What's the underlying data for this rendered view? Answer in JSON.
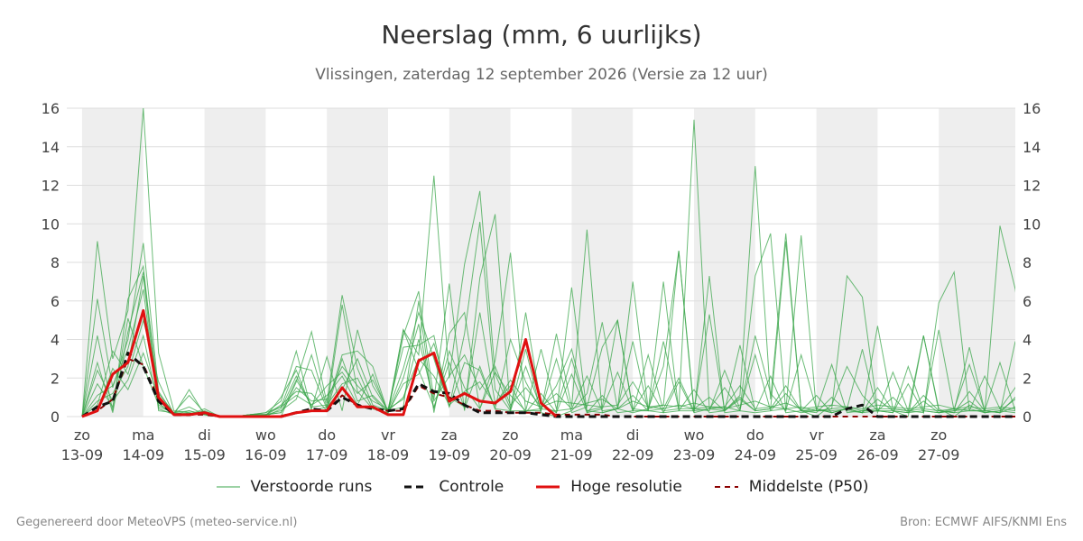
{
  "header": {
    "title": "Neerslag (mm, 6 uurlijks)",
    "subtitle": "Vlissingen, zaterdag 12 september 2026 (Versie za 12 uur)"
  },
  "footer": {
    "left": "Gegenereerd door MeteoVPS (meteo-service.nl)",
    "right": "Bron: ECMWF AIFS/KNMI Ens"
  },
  "legend": {
    "items": [
      {
        "label": "Verstoorde runs",
        "color": "#3aa64a",
        "style": "thin"
      },
      {
        "label": "Controle",
        "color": "#111111",
        "style": "dashed"
      },
      {
        "label": "Hoge resolutie",
        "color": "#e01010",
        "style": "thick"
      },
      {
        "label": "Middelste (P50)",
        "color": "#8b0000",
        "style": "dashed"
      }
    ]
  },
  "colors": {
    "ensemble": "#3aa64a",
    "control": "#111111",
    "high_resolution": "#e01010",
    "median": "#8b0000",
    "weekend_band": "#eeeeee",
    "grid": "#dddddd"
  },
  "chart_data": {
    "type": "line",
    "ylim": [
      0,
      16
    ],
    "yticks": [
      0,
      2,
      4,
      6,
      8,
      10,
      12,
      14,
      16
    ],
    "xlim": [
      -0.25,
      15.25
    ],
    "x_unit": "days from 13-09 (6-hourly steps)",
    "x_tick_labels": [
      {
        "day": "zo",
        "date": "13-09"
      },
      {
        "day": "ma",
        "date": "14-09"
      },
      {
        "day": "di",
        "date": "15-09"
      },
      {
        "day": "wo",
        "date": "16-09"
      },
      {
        "day": "do",
        "date": "17-09"
      },
      {
        "day": "vr",
        "date": "18-09"
      },
      {
        "day": "za",
        "date": "19-09"
      },
      {
        "day": "zo",
        "date": "20-09"
      },
      {
        "day": "ma",
        "date": "21-09"
      },
      {
        "day": "di",
        "date": "22-09"
      },
      {
        "day": "wo",
        "date": "23-09"
      },
      {
        "day": "do",
        "date": "24-09"
      },
      {
        "day": "vr",
        "date": "25-09"
      },
      {
        "day": "za",
        "date": "26-09"
      },
      {
        "day": "zo",
        "date": "27-09"
      }
    ],
    "shaded_bands": [
      [
        0,
        1
      ],
      [
        2,
        3
      ],
      [
        4,
        5
      ],
      [
        6,
        7
      ],
      [
        8,
        9
      ],
      [
        10,
        11
      ],
      [
        12,
        13
      ],
      [
        14,
        15.25
      ]
    ],
    "series": [
      {
        "name": "Hoge resolutie",
        "values": [
          0,
          0.3,
          2.2,
          2.8,
          5.5,
          1,
          0.1,
          0.1,
          0.2,
          0,
          0,
          0,
          0,
          0,
          0.2,
          0.3,
          0.3,
          1.5,
          0.5,
          0.5,
          0.1,
          0.1,
          2.9,
          3.3,
          0.8,
          1.2,
          0.8,
          0.7,
          1.3,
          4.0,
          0.7,
          0
        ]
      },
      {
        "name": "Controle",
        "values": [
          0,
          0.5,
          0.8,
          3.3,
          2.6,
          0.8,
          0.1,
          0.1,
          0.2,
          0,
          0,
          0,
          0,
          0,
          0.2,
          0.4,
          0.3,
          1.0,
          0.6,
          0.4,
          0.3,
          0.4,
          1.7,
          1.3,
          1.2,
          0.6,
          0.2,
          0.2,
          0.2,
          0.2,
          0.1,
          0,
          0,
          0,
          0,
          0,
          0,
          0,
          0,
          0,
          0,
          0,
          0,
          0,
          0,
          0,
          0,
          0,
          0,
          0,
          0.4,
          0.6,
          0,
          0,
          0,
          0,
          0,
          0,
          0,
          0,
          0,
          0,
          0
        ]
      },
      {
        "name": "Middelste (P50)",
        "values": [
          0,
          0.3,
          0.9,
          3.0,
          2.7,
          0.9,
          0.1,
          0.1,
          0.1,
          0,
          0,
          0,
          0,
          0,
          0.2,
          0.3,
          0.3,
          1.1,
          0.6,
          0.4,
          0.3,
          0.3,
          1.6,
          1.2,
          1.0,
          0.6,
          0.3,
          0.3,
          0.2,
          0.2,
          0.2,
          0.1,
          0.1,
          0.1,
          0.1,
          0,
          0,
          0,
          0,
          0,
          0,
          0,
          0,
          0,
          0,
          0,
          0,
          0,
          0,
          0,
          0,
          0,
          0,
          0,
          0,
          0,
          0,
          0,
          0,
          0,
          0,
          0,
          0
        ]
      }
    ],
    "ensemble": [
      [
        0,
        9.1,
        3.0,
        5.5,
        16.0,
        3.3,
        0.3,
        0.2,
        0.1,
        0,
        0,
        0,
        0,
        0,
        1.8,
        4.4,
        0.7,
        6.3,
        2.5,
        0.6,
        0.3,
        4.5,
        3.2,
        12.5,
        2.0,
        7.9,
        11.7,
        2.2,
        0.4,
        3.5,
        0.2,
        0,
        0.3,
        1.2,
        4.9,
        0.4,
        7.0,
        0.4,
        0.6,
        8.6,
        0.4,
        1.0,
        0.3,
        1.1,
        13.0,
        0.9,
        9.5,
        0.3,
        0,
        0.6,
        2.6,
        1.1,
        0.3,
        0.3,
        0,
        4.2,
        0.4,
        0,
        0.6,
        0.2,
        9.9,
        6.6,
        0.5
      ],
      [
        0,
        6.1,
        1.5,
        4.0,
        9.0,
        1.3,
        0.1,
        1.4,
        0.1,
        0,
        0,
        0.1,
        0.2,
        0.8,
        3.4,
        0.3,
        0.5,
        3.2,
        3.4,
        2.6,
        0.2,
        4.2,
        6.5,
        0.9,
        6.9,
        0.3,
        7.2,
        10.5,
        0.3,
        0.3,
        0.3,
        4.3,
        0.5,
        9.7,
        0.2,
        0.4,
        0.2,
        0.4,
        2.6,
        8.6,
        0.2,
        7.3,
        0.2,
        0.3,
        4.2,
        1.2,
        0.3,
        9.4,
        0.3,
        0.4,
        7.3,
        6.2,
        0.3,
        0.2,
        1.7,
        0.2,
        5.9,
        7.5,
        0.3,
        0.3,
        2.8,
        0.3,
        6.5
      ],
      [
        0,
        4.2,
        0.3,
        6.1,
        7.8,
        0.7,
        0.1,
        0.1,
        0.4,
        0,
        0,
        0.1,
        0.1,
        0.5,
        2.6,
        2.4,
        0.4,
        5.8,
        1.3,
        0.4,
        0.4,
        3.6,
        3.7,
        4.2,
        0.5,
        4.3,
        10.1,
        1.4,
        0.3,
        5.4,
        0.6,
        0.2,
        6.7,
        0.2,
        0.4,
        2.3,
        0.3,
        3.2,
        0.3,
        0.4,
        15.4,
        0.4,
        0.5,
        0.3,
        7.3,
        9.5,
        0.3,
        3.2,
        0.4,
        0.2,
        0.4,
        0.2,
        4.7,
        0.4,
        0.3,
        0.2,
        4.5,
        0.3,
        3.6,
        0.3,
        0.2,
        3.9,
        0.3
      ],
      [
        0,
        2.8,
        0.2,
        4.4,
        7.5,
        1.2,
        0.2,
        1.1,
        0.2,
        0,
        0,
        0,
        0,
        1.0,
        2.4,
        0.4,
        3.1,
        0.3,
        4.5,
        1.6,
        0.3,
        0.5,
        6.0,
        0.2,
        4.3,
        5.4,
        0.4,
        2.9,
        8.5,
        0.3,
        3.5,
        0.4,
        3.0,
        0.3,
        0.5,
        5.0,
        0.4,
        0.3,
        7.0,
        0.3,
        0.3,
        5.3,
        0.3,
        3.7,
        0.3,
        0.4,
        9.1,
        0.3,
        0.4,
        0.2,
        0.4,
        3.5,
        0.2,
        2.3,
        0.3,
        4.2,
        0.3,
        0.2,
        0.3,
        2.1,
        0.4,
        1.5,
        3.6
      ],
      [
        0,
        1.1,
        1.6,
        3.5,
        6.6,
        0.3,
        0.2,
        0.5,
        0.1,
        0,
        0,
        0.1,
        0.2,
        0.5,
        1.1,
        0.6,
        1.6,
        2.3,
        1.2,
        1.9,
        0.3,
        2.5,
        5.4,
        3.0,
        0.5,
        2.8,
        2.4,
        0.4,
        4.0,
        1.8,
        0.3,
        3.0,
        0.2,
        0.5,
        3.6,
        5.0,
        0.3,
        0.3,
        3.9,
        0.4,
        0.4,
        0.3,
        2.4,
        0.4,
        3.2,
        0.3,
        0.4,
        0.2,
        0.3,
        2.7,
        0.2,
        0.3,
        0.3,
        0.2,
        2.6,
        0.3,
        0.2,
        0.4,
        2.7,
        0.3,
        0.2,
        0.5,
        0.4
      ],
      [
        0,
        0.6,
        3.4,
        2.2,
        5.0,
        1.8,
        0.1,
        0.1,
        0.3,
        0,
        0,
        0.1,
        0.1,
        0.3,
        0.9,
        3.2,
        0.5,
        1.4,
        3.0,
        1.0,
        0.2,
        2.0,
        4.8,
        0.4,
        3.4,
        1.5,
        0.4,
        2.3,
        1.1,
        0.3,
        0.4,
        1.6,
        3.5,
        0.3,
        0.2,
        0.4,
        3.9,
        0.3,
        0.2,
        1.8,
        0.2,
        0.4,
        1.5,
        0.3,
        0.2,
        0.3,
        1.2,
        0.3,
        0.2,
        1.0,
        0.3,
        0.2,
        1.5,
        0.3,
        0.2,
        1.1,
        0.3,
        0.2,
        1.3,
        0.3,
        0.2,
        1.0,
        0.8
      ],
      [
        0,
        2.4,
        0.8,
        1.9,
        4.2,
        0.5,
        0.2,
        0.3,
        0.1,
        0,
        0,
        0,
        0.1,
        0.2,
        1.9,
        0.6,
        1.1,
        2.1,
        0.6,
        2.2,
        0.2,
        1.7,
        2.2,
        3.8,
        1.0,
        0.5,
        5.4,
        0.7,
        1.6,
        0.2,
        1.2,
        0.2,
        2.2,
        0.2,
        1.1,
        0.2,
        0.3,
        1.6,
        0.2,
        0.3,
        1.4,
        0.2,
        0.3,
        1.0,
        0.3,
        2.1,
        0.2,
        0.3,
        1.1,
        0.2,
        0.4,
        0.2,
        0.9,
        0.3,
        0.2,
        0.8,
        0.2,
        0.3,
        0.8,
        0.2,
        0.3,
        0.9,
        0.3
      ],
      [
        0,
        0.3,
        2.5,
        1.4,
        3.3,
        1.0,
        0.1,
        0.2,
        0.1,
        0,
        0,
        0.1,
        0.1,
        0.6,
        1.3,
        1.2,
        0.3,
        3.0,
        0.8,
        1.1,
        0.3,
        1.0,
        3.0,
        2.1,
        0.6,
        1.3,
        1.8,
        0.6,
        1.9,
        0.8,
        0.5,
        1.2,
        0.4,
        0.7,
        0.9,
        0.4,
        0.8,
        0.5,
        0.6,
        0.5,
        0.7,
        0.5,
        0.4,
        0.6,
        0.8,
        0.5,
        0.7,
        0.4,
        0.5,
        0.6,
        0.5,
        0.4,
        0.6,
        0.5,
        0.4,
        0.5,
        0.6,
        0.4,
        0.5,
        0.4,
        0.5,
        0.4,
        0.5
      ],
      [
        0,
        1.7,
        0.5,
        5.1,
        2.6,
        0.6,
        0.2,
        0.1,
        0.2,
        0,
        0,
        0,
        0,
        0.4,
        2.1,
        0.5,
        0.6,
        1.7,
        2.0,
        0.4,
        0.2,
        4.5,
        2.4,
        0.5,
        2.8,
        0.4,
        2.6,
        0.4,
        0.3,
        2.6,
        0.4,
        0.3,
        0.4,
        2.1,
        0.3,
        0.4,
        1.1,
        0.3,
        0.4,
        2.0,
        0.3,
        0.4,
        0.3,
        0.9,
        0.3,
        0.4,
        1.6,
        0.3,
        0.3,
        0.3,
        0.4,
        0.2,
        0.3,
        1.0,
        0.2,
        0.3,
        0.2,
        0.3,
        0.4,
        0.2,
        0.3,
        0.2,
        0.3
      ],
      [
        0,
        0.8,
        1.2,
        2.6,
        7.3,
        0.4,
        0.1,
        0.3,
        0.1,
        0,
        0,
        0.1,
        0.1,
        0.2,
        1.5,
        0.8,
        0.9,
        2.6,
        1.6,
        0.8,
        0.4,
        0.9,
        4.0,
        0.8,
        2.1,
        3.2,
        1.4,
        2.6,
        0.6,
        1.5,
        0.5,
        0.8,
        0.7,
        0.6,
        0.5,
        0.6,
        1.8,
        0.5,
        0.4,
        0.6,
        0.4,
        0.5,
        0.5,
        1.6,
        0.4,
        0.5,
        0.4,
        0.5,
        0.3,
        0.4,
        0.5,
        0.3,
        0.4,
        0.4,
        0.3,
        0.4,
        0.3,
        0.4,
        0.3,
        0.3,
        0.4,
        0.3,
        0.3
      ]
    ]
  }
}
